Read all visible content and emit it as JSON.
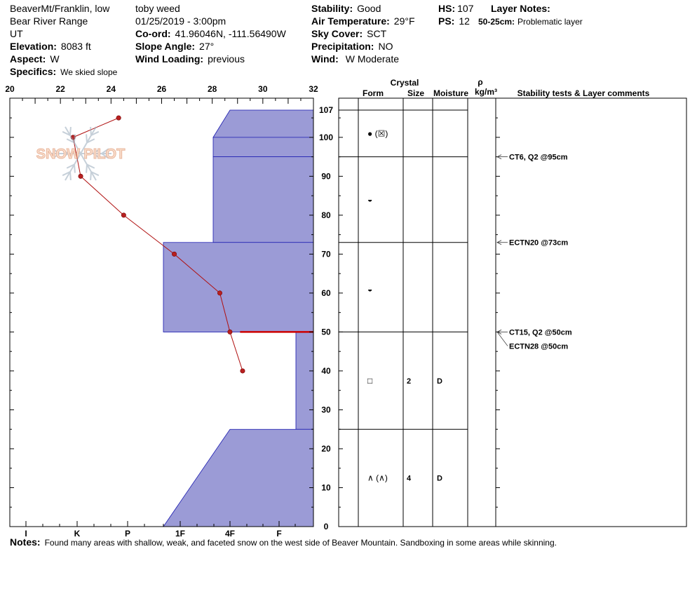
{
  "header": {
    "location": "BeaverMt/Franklin, low",
    "range": "Bear River Range",
    "state": "UT",
    "elevation_label": "Elevation:",
    "elevation_value": "8083 ft",
    "aspect_label": "Aspect:",
    "aspect_value": "W",
    "specifics_label": "Specifics:",
    "specifics_value": "We skied slope",
    "observer": "toby weed",
    "datetime": "01/25/2019 - 3:00pm",
    "coord_label": "Co-ord:",
    "coord_value": "41.96046N, -111.56490W",
    "slope_label": "Slope Angle:",
    "slope_value": "27°",
    "windload_label": "Wind Loading:",
    "windload_value": "previous",
    "stability_label": "Stability:",
    "stability_value": "Good",
    "airtemp_label": "Air Temperature:",
    "airtemp_value": "29°F",
    "sky_label": "Sky Cover:",
    "sky_value": "SCT",
    "precip_label": "Precipitation:",
    "precip_value": "NO",
    "wind_label": "Wind:",
    "wind_value": "W Moderate",
    "hs_label": "HS:",
    "hs_value": "107",
    "ps_label": "PS:",
    "ps_value": "12",
    "layer_notes_label": "Layer Notes:",
    "layer_note_range": "50-25cm:",
    "layer_note_text": "Problematic layer"
  },
  "watermark": "SNOW PILOT",
  "notes_label": "Notes:",
  "notes_text": "Found many areas with shallow, weak, and faceted snow on the west side of Beaver Mountain.  Sandboxing in some areas while skinning.",
  "columns": {
    "crystal": "Crystal",
    "form": "Form",
    "size": "Size",
    "moisture": "Moisture",
    "rho": "ρ",
    "density_unit": "kg/m³",
    "stability": "Stability tests & Layer comments"
  },
  "colors": {
    "hardness_fill": "#9b9bd6",
    "hardness_stroke": "#1a1ab0",
    "temp_line": "#b01010",
    "temp_point": "#b82020",
    "weak_layer": "#cc0000"
  },
  "chart_data": {
    "type": "snow_profile",
    "temperature_axis": {
      "label_ticks": [
        20,
        22,
        24,
        26,
        28,
        30,
        32
      ],
      "range": [
        20,
        32
      ]
    },
    "hardness_axis": {
      "ticks": [
        "I",
        "K",
        "P",
        "1F",
        "4F",
        "F"
      ]
    },
    "height_axis": {
      "range": [
        0,
        107
      ],
      "ticks": [
        0,
        10,
        20,
        30,
        40,
        50,
        60,
        70,
        80,
        90,
        100,
        107
      ]
    },
    "temperature_profile": [
      {
        "depth": 105,
        "temp": 24.3
      },
      {
        "depth": 100,
        "temp": 22.5
      },
      {
        "depth": 90,
        "temp": 22.8
      },
      {
        "depth": 80,
        "temp": 24.5
      },
      {
        "depth": 70,
        "temp": 26.5
      },
      {
        "depth": 60,
        "temp": 28.3
      },
      {
        "depth": 50,
        "temp": 28.7
      },
      {
        "depth": 40,
        "temp": 29.2
      }
    ],
    "layer_boundaries": [
      107,
      95,
      73,
      50,
      25,
      0
    ],
    "hardness_profile": [
      {
        "top": 107,
        "bottom": 100,
        "hardness_top": "4F",
        "hardness_bottom": "4F+"
      },
      {
        "top": 100,
        "bottom": 95,
        "hardness_top": "4F+",
        "hardness_bottom": "4F+"
      },
      {
        "top": 95,
        "bottom": 73,
        "hardness": "4F+"
      },
      {
        "top": 73,
        "bottom": 50,
        "hardness": "1F+"
      },
      {
        "top": 50,
        "bottom": 25,
        "hardness": "F-"
      },
      {
        "top": 25,
        "bottom": 0,
        "hardness_top": "4F",
        "hardness_bottom": "1F+"
      }
    ],
    "weak_layer_depth": 50,
    "layers": [
      {
        "depth": 101,
        "form": "● (☒)",
        "size": "",
        "moisture": ""
      },
      {
        "depth": 84,
        "form": "◒",
        "size": "",
        "moisture": ""
      },
      {
        "depth": 61,
        "form": "◒",
        "size": "",
        "moisture": ""
      },
      {
        "depth": 37.5,
        "form": "□",
        "size": "2",
        "moisture": "D"
      },
      {
        "depth": 12.5,
        "form": "∧ (∧)",
        "size": "4",
        "moisture": "D"
      }
    ],
    "stability_tests": [
      {
        "depth": 95,
        "text": "CT6, Q2 @95cm"
      },
      {
        "depth": 73,
        "text": "ECTN20 @73cm"
      },
      {
        "depth": 50,
        "text": "CT15, Q2 @50cm"
      },
      {
        "depth": 50,
        "text": "ECTN28 @50cm"
      }
    ]
  }
}
